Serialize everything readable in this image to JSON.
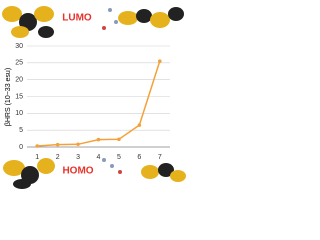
{
  "chart_data": {
    "type": "line",
    "y_label": "βHRS (10−33 esu)",
    "categories": [
      "1",
      "2",
      "3",
      "4",
      "5",
      "6",
      "7"
    ],
    "values": [
      0.3,
      0.7,
      0.8,
      2.2,
      2.3,
      6.5,
      25.5
    ],
    "color": "#f4a13a",
    "ylim": [
      0,
      30
    ],
    "yticks": [
      0,
      5,
      10,
      15,
      20,
      25,
      30
    ],
    "grid": true,
    "annotations": [
      "LUMO",
      "HOMO"
    ],
    "annotation_color": "#e8332a"
  }
}
